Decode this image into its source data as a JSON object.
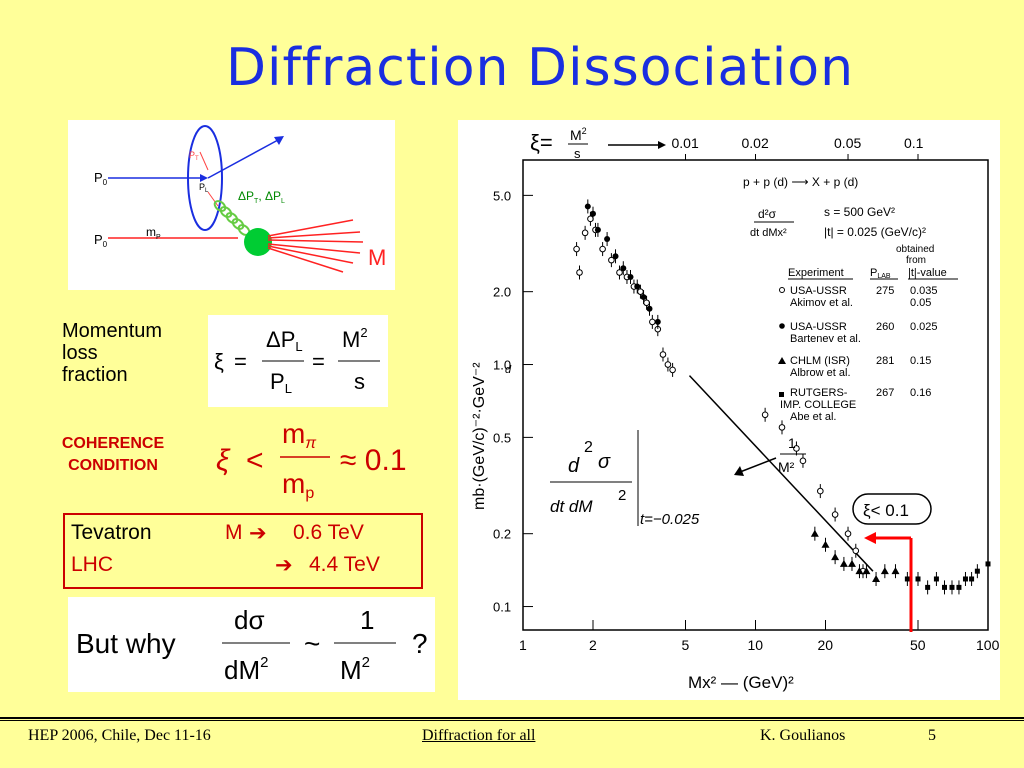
{
  "title": "Diffraction Dissociation",
  "diagram": {
    "p0_top": "P",
    "p0_top_sub": "0",
    "p0_bottom": "P",
    "p0_bottom_sub": "0",
    "pt": "P",
    "pt_sub": "T",
    "pl": "P",
    "pl_sub": "L",
    "delta_label": "ΔP",
    "delta_label_sub1": "T",
    "delta_sep": ", ΔP",
    "delta_label_sub2": "L",
    "mp": "m",
    "mp_sub": "P",
    "M": "M"
  },
  "momentum": {
    "label_lines": [
      "Momentum",
      "loss",
      "fraction"
    ],
    "xi": "ξ",
    "eq": "=",
    "num1": "ΔP",
    "num1_sub": "L",
    "den1": "P",
    "den1_sub": "L",
    "num2": "M",
    "num2_sup": "2",
    "den2": "s"
  },
  "coherence": {
    "label_lines": [
      "COHERENCE",
      "CONDITION"
    ],
    "xi": "ξ",
    "lt": "<",
    "num": "m",
    "num_sub": "π",
    "den": "m",
    "den_sub": "p",
    "approx": "≈ 0.1"
  },
  "tevatron": {
    "name": "Tevatron",
    "m_label": "M",
    "arrow": "➔",
    "value": "0.6 TeV",
    "lhc_name": "LHC",
    "lhc_arrow": "➔",
    "lhc_value": "4.4 TeV"
  },
  "why": {
    "but_why": "But why",
    "num1": "dσ",
    "den1": "dM",
    "den1_sup": "2",
    "sim": "~",
    "num2": "1",
    "den2": "M",
    "den2_sup": "2",
    "q": "?"
  },
  "plot": {
    "xi_label": "ξ=",
    "xi_frac_num": "M",
    "xi_frac_num_sup": "2",
    "xi_frac_den": "s",
    "xi_ticks": [
      "0.01",
      "0.02",
      "0.05",
      "0.1"
    ],
    "reaction": "p + p (d) ⟶ X + p (d)",
    "dsig_num": "d²σ",
    "dsig_den": "dt dMx²",
    "cond1": "s = 500 GeV²",
    "cond2": "|t| = 0.025 (GeV/c)²",
    "obtained1": "obtained",
    "obtained2": "from",
    "legend_head": [
      "Experiment",
      "P",
      "|t|-value"
    ],
    "legend_head_sub": "LAB",
    "legend_rows": [
      {
        "name1": "USA-USSR",
        "name2": "Akimov et al.",
        "plab": "275",
        "t1": "0.035",
        "t2": "0.05",
        "marker": "open"
      },
      {
        "name1": "USA-USSR",
        "name2": "Bartenev et al.",
        "plab": "260",
        "t1": "0.025",
        "t2": "",
        "marker": "filled"
      },
      {
        "name1": "CHLM (ISR)",
        "name2": "Albrow et al.",
        "plab": "281",
        "t1": "0.15",
        "t2": "",
        "marker": "triangle"
      },
      {
        "name1": "RUTGERS-",
        "name2": "IMP. COLLEGE",
        "name3": "Abe et al.",
        "plab": "267",
        "t1": "0.16",
        "t2": "",
        "marker": "square"
      }
    ],
    "one_over": "1",
    "one_over_den": "M²",
    "xi_lt": "ξ< 0.1",
    "ylabel": "mb·(GeV/c)⁻²·GeV⁻²",
    "xlabel": "Mx² — (GeV)²",
    "y_ticks": [
      "5.0",
      "2.0",
      "1.0",
      "0.5",
      "0.2",
      "0.1"
    ],
    "x_ticks": [
      "1",
      "2",
      "5",
      "10",
      "20",
      "50",
      "100"
    ],
    "overlay_num": "d",
    "overlay_num_sup": "2",
    "overlay_sigma": "σ",
    "overlay_den": "dt dM",
    "overlay_den_sup": "2",
    "overlay_cond": "t=−0.025",
    "small_d": "d"
  },
  "footer": {
    "left": "HEP 2006, Chile, Dec 11-16",
    "center": "Diffraction for all",
    "author": "K. Goulianos",
    "page": "5"
  },
  "colors": {
    "background": "#ffff99",
    "title": "#1a2ee0",
    "red": "#cc0000"
  },
  "chart_data": {
    "type": "scatter",
    "xscale": "log",
    "yscale": "log",
    "xlim": [
      1,
      100
    ],
    "ylim": [
      0.08,
      7
    ],
    "series": [
      {
        "name": "USA-USSR Akimov et al.",
        "marker": "open",
        "x": [
          1.7,
          1.75,
          1.85,
          1.95,
          2.05,
          2.2,
          2.4,
          2.6,
          2.8,
          3.0,
          3.2,
          3.4,
          3.6,
          3.8,
          4.0,
          4.2,
          4.4,
          11,
          13,
          15,
          16,
          19,
          22,
          25,
          27,
          29
        ],
        "y": [
          3.0,
          2.4,
          3.5,
          4.0,
          3.6,
          3.0,
          2.7,
          2.4,
          2.3,
          2.1,
          2.0,
          1.8,
          1.5,
          1.4,
          1.1,
          1.0,
          0.95,
          0.62,
          0.55,
          0.45,
          0.4,
          0.3,
          0.24,
          0.2,
          0.17,
          0.14
        ]
      },
      {
        "name": "USA-USSR Bartenev et al.",
        "marker": "filled",
        "x": [
          1.9,
          2.0,
          2.1,
          2.3,
          2.5,
          2.7,
          2.9,
          3.1,
          3.3,
          3.5,
          3.8
        ],
        "y": [
          4.5,
          4.2,
          3.6,
          3.3,
          2.8,
          2.5,
          2.3,
          2.1,
          1.9,
          1.7,
          1.5
        ]
      },
      {
        "name": "CHLM (ISR) Albrow et al.",
        "marker": "triangle",
        "x": [
          18,
          20,
          22,
          24,
          26,
          28,
          30,
          33,
          36,
          40
        ],
        "y": [
          0.2,
          0.18,
          0.16,
          0.15,
          0.15,
          0.14,
          0.14,
          0.13,
          0.14,
          0.14
        ]
      },
      {
        "name": "RUTGERS-IMP. COLLEGE Abe et al.",
        "marker": "square",
        "x": [
          45,
          50,
          55,
          60,
          65,
          70,
          75,
          80,
          85,
          90,
          100
        ],
        "y": [
          0.13,
          0.13,
          0.12,
          0.13,
          0.12,
          0.12,
          0.12,
          0.13,
          0.13,
          0.14,
          0.15
        ]
      }
    ],
    "fit_line": {
      "label": "1/M²",
      "x": [
        5.2,
        32
      ],
      "y": [
        0.9,
        0.14
      ]
    },
    "threshold_marker": {
      "label": "ξ< 0.1",
      "x": 50
    }
  }
}
